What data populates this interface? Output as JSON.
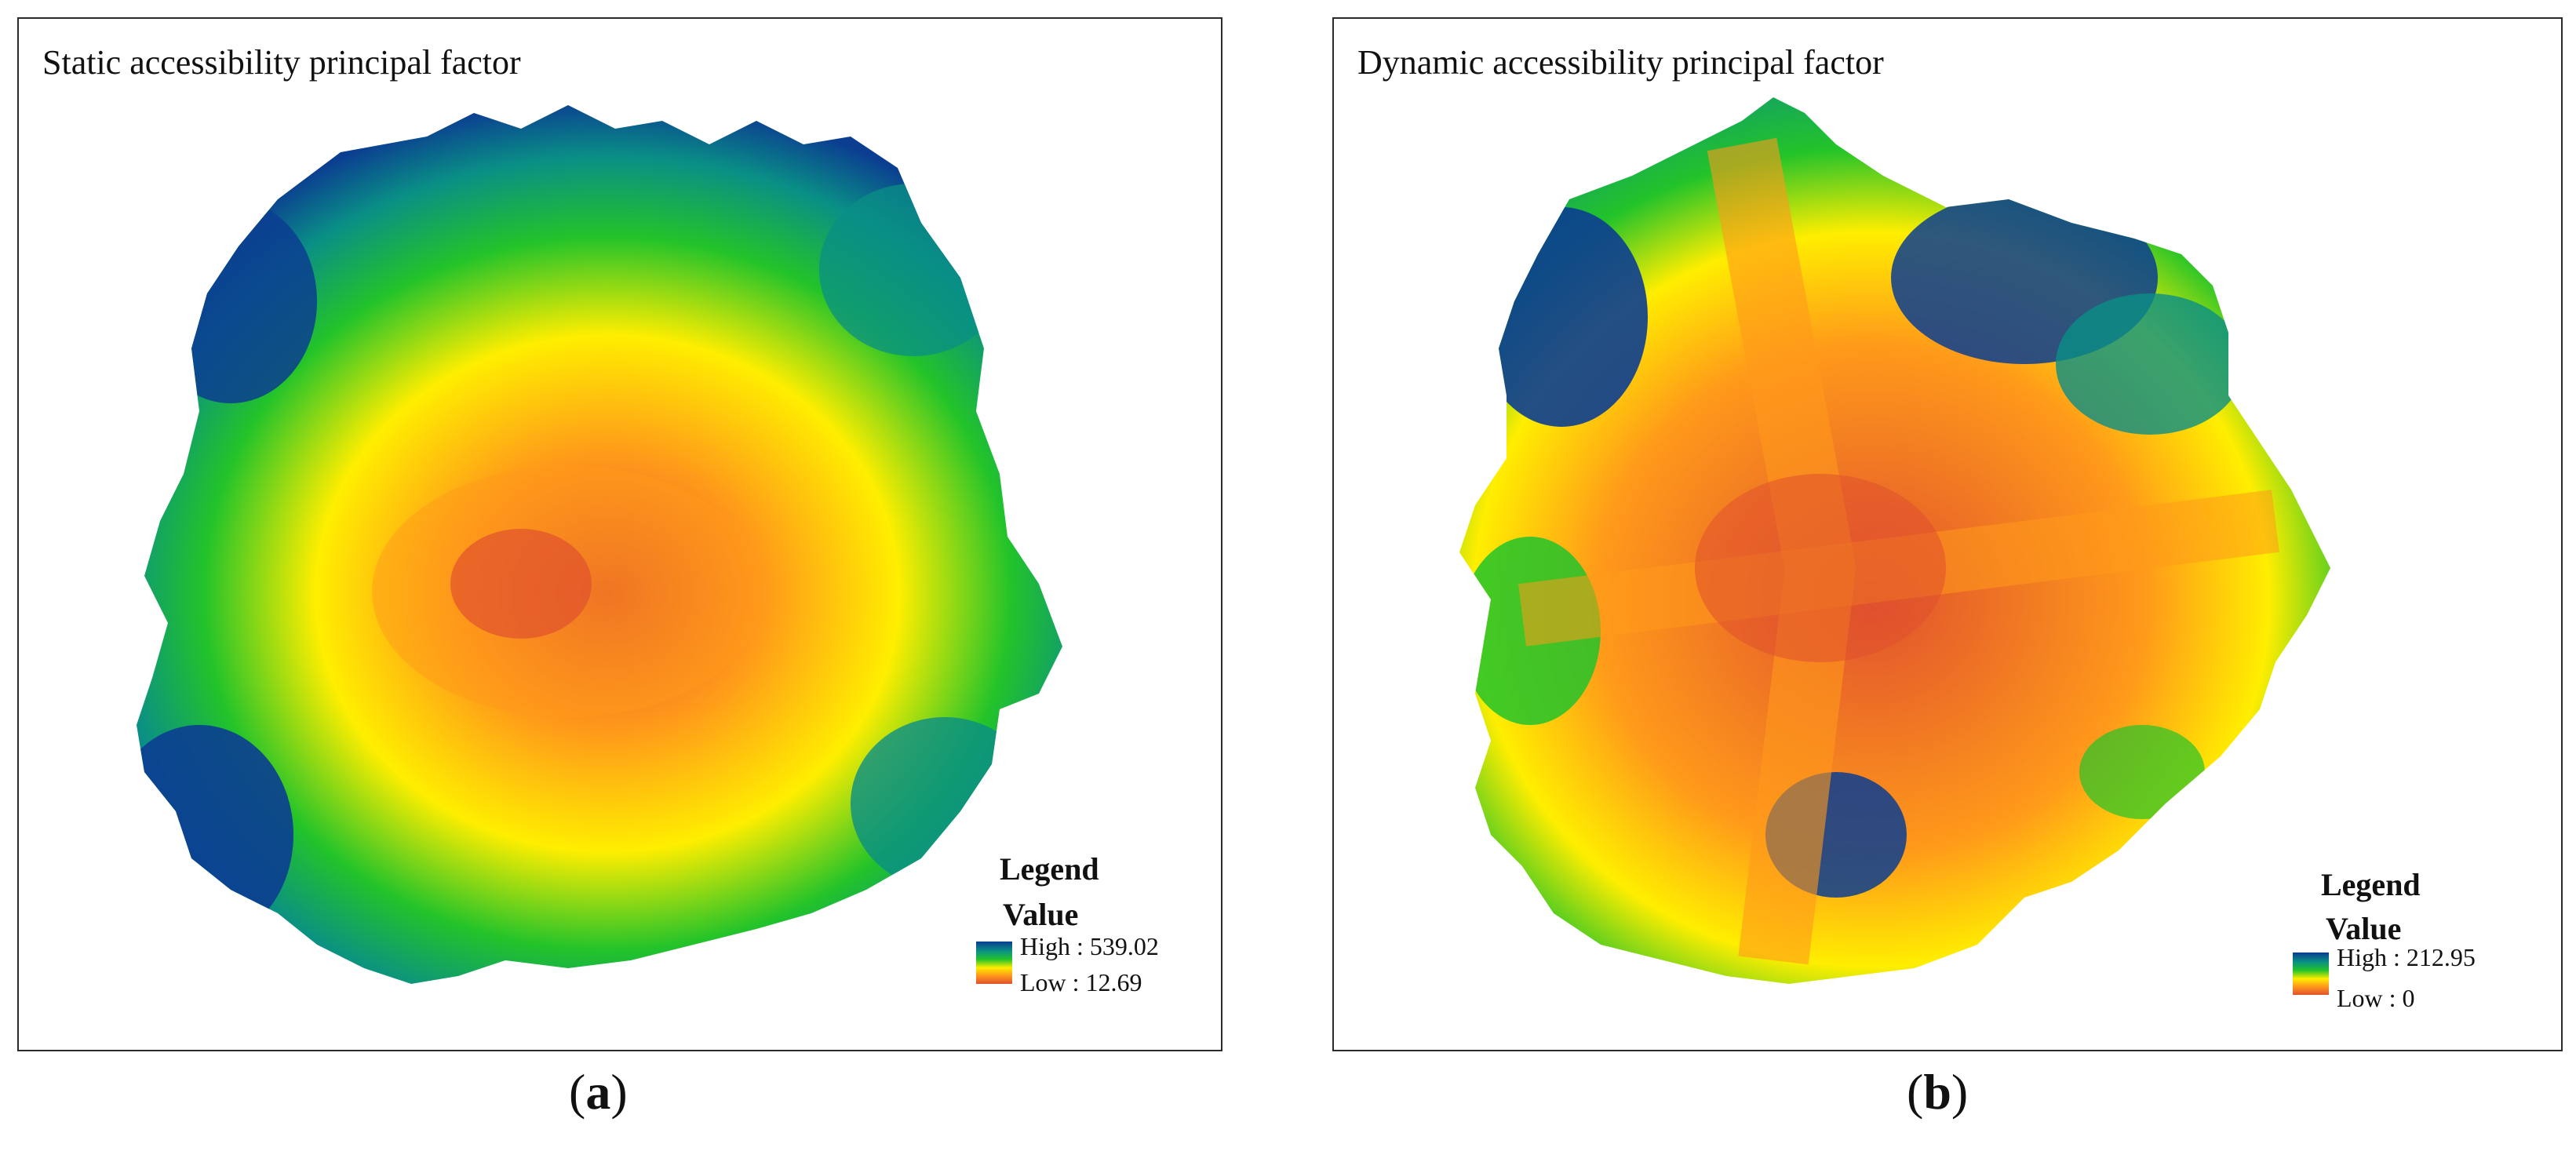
{
  "panels": [
    {
      "title": "Static accessibility principal factor",
      "legend": {
        "title": "Legend",
        "value_label": "Value",
        "high": "High : 539.02",
        "low": "Low : 12.69"
      },
      "caption": {
        "open": "(",
        "letter": "a",
        "close": ")"
      }
    },
    {
      "title": "Dynamic accessibility principal factor",
      "legend": {
        "title": "Legend",
        "value_label": "Value",
        "high": "High : 212.95",
        "low": "Low : 0"
      },
      "caption": {
        "open": "(",
        "letter": "b",
        "close": ")"
      }
    }
  ],
  "colors": {
    "high": "#0b3d91",
    "mid_high": "#0a8f86",
    "mid": "#22c32a",
    "mid_low": "#ffee00",
    "low_mid": "#ff9a1a",
    "low": "#e0512e",
    "frame": "#2b2b2b"
  }
}
